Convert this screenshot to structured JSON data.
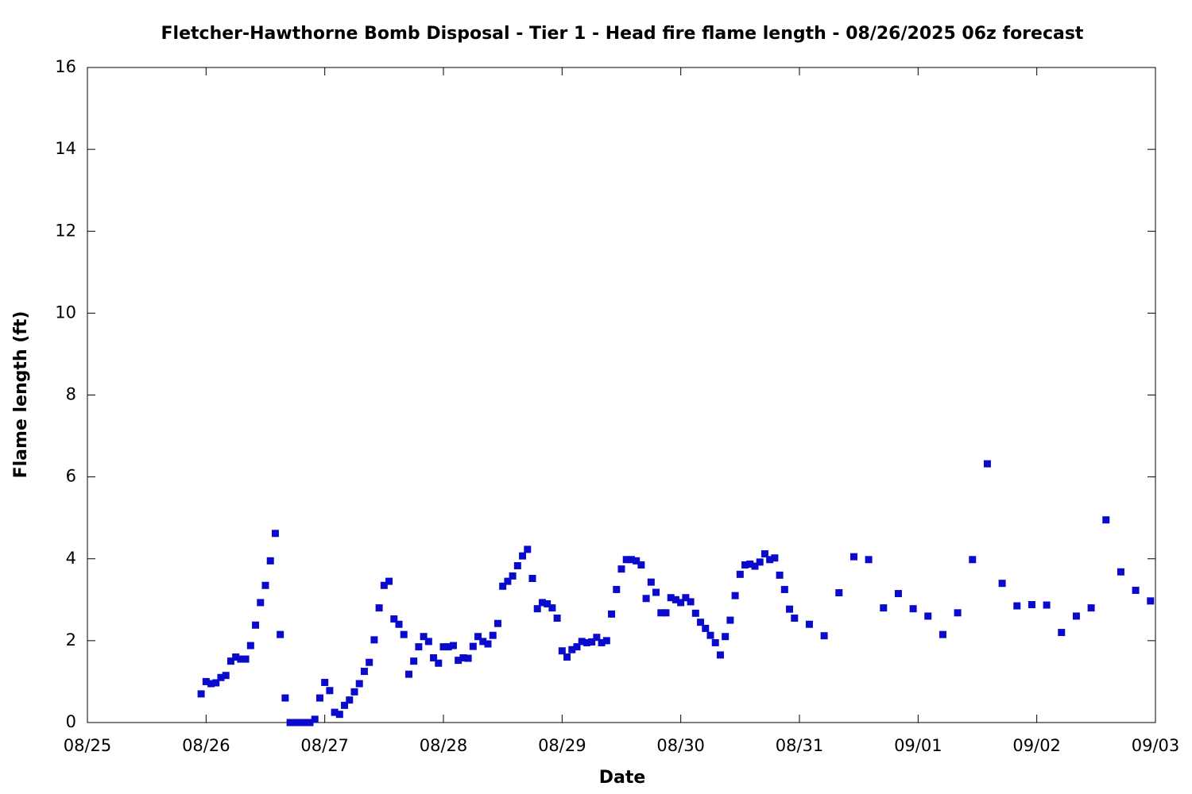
{
  "chart_data": {
    "type": "scatter",
    "title": "Fletcher-Hawthorne Bomb Disposal - Tier 1 - Head fire flame length - 08/26/2025 06z forecast",
    "xlabel": "Date",
    "ylabel": "Flame length (ft)",
    "color": "#0a0acc",
    "xlim": [
      0,
      216
    ],
    "xticks": [
      {
        "value": 0,
        "label": "08/25"
      },
      {
        "value": 24,
        "label": "08/26"
      },
      {
        "value": 48,
        "label": "08/27"
      },
      {
        "value": 72,
        "label": "08/28"
      },
      {
        "value": 96,
        "label": "08/29"
      },
      {
        "value": 120,
        "label": "08/30"
      },
      {
        "value": 144,
        "label": "08/31"
      },
      {
        "value": 168,
        "label": "09/01"
      },
      {
        "value": 192,
        "label": "09/02"
      },
      {
        "value": 216,
        "label": "09/03"
      }
    ],
    "ylim": [
      0,
      16
    ],
    "yticks": [
      0,
      2,
      4,
      6,
      8,
      10,
      12,
      14,
      16
    ],
    "grid": false,
    "x": [
      23,
      24,
      25,
      26,
      27,
      28,
      29,
      30,
      31,
      32,
      33,
      34,
      35,
      36,
      37,
      38,
      39,
      40,
      41,
      42,
      43,
      44,
      45,
      46,
      47,
      48,
      49,
      50,
      51,
      52,
      53,
      54,
      55,
      56,
      57,
      58,
      59,
      60,
      61,
      62,
      63,
      64,
      65,
      66,
      67,
      68,
      69,
      70,
      71,
      72,
      73,
      74,
      75,
      76,
      77,
      78,
      79,
      80,
      81,
      82,
      83,
      84,
      85,
      86,
      87,
      88,
      89,
      90,
      91,
      92,
      93,
      94,
      95,
      96,
      97,
      98,
      99,
      100,
      101,
      102,
      103,
      104,
      105,
      106,
      107,
      108,
      109,
      110,
      111,
      112,
      113,
      114,
      115,
      116,
      117,
      118,
      119,
      120,
      121,
      122,
      123,
      124,
      125,
      126,
      127,
      128,
      129,
      130,
      131,
      132,
      133,
      134,
      135,
      136,
      137,
      138,
      139,
      140,
      141,
      142,
      143,
      146,
      149,
      152,
      155,
      158,
      161,
      164,
      167,
      170,
      173,
      176,
      179,
      182,
      185,
      188,
      191,
      194,
      197,
      200,
      203,
      206,
      209,
      212,
      215
    ],
    "values": [
      0.7,
      1.0,
      0.95,
      0.97,
      1.1,
      1.15,
      1.5,
      1.6,
      1.55,
      1.55,
      1.88,
      2.38,
      2.93,
      3.35,
      3.95,
      4.62,
      2.15,
      0.6,
      0,
      0,
      0,
      0,
      0,
      0.08,
      0.6,
      0.98,
      0.78,
      0.25,
      0.2,
      0.42,
      0.55,
      0.75,
      0.95,
      1.25,
      1.47,
      2.02,
      2.8,
      3.35,
      3.45,
      2.53,
      2.4,
      2.15,
      1.18,
      1.5,
      1.85,
      2.1,
      1.98,
      1.58,
      1.45,
      1.85,
      1.85,
      1.88,
      1.52,
      1.58,
      1.57,
      1.86,
      2.1,
      1.98,
      1.92,
      2.13,
      2.42,
      3.33,
      3.45,
      3.58,
      3.83,
      4.07,
      4.23,
      3.52,
      2.78,
      2.93,
      2.9,
      2.8,
      2.55,
      1.75,
      1.6,
      1.78,
      1.85,
      1.98,
      1.95,
      1.97,
      2.08,
      1.95,
      2.0,
      2.65,
      3.25,
      3.75,
      3.98,
      3.98,
      3.95,
      3.85,
      3.03,
      3.43,
      3.18,
      2.68,
      2.68,
      3.05,
      3.0,
      2.93,
      3.05,
      2.95,
      2.67,
      2.45,
      2.3,
      2.13,
      1.95,
      1.65,
      2.1,
      2.5,
      3.1,
      3.62,
      3.85,
      3.87,
      3.82,
      3.92,
      4.12,
      3.98,
      4.02,
      3.6,
      3.25,
      2.77,
      2.55,
      2.4,
      2.12,
      3.17,
      4.05,
      3.98,
      2.8,
      3.15,
      2.78,
      2.6,
      2.15,
      2.68,
      3.98,
      6.32,
      3.4,
      2.85,
      2.88,
      2.87,
      2.2,
      2.6,
      2.8,
      4.95,
      3.68,
      3.23,
      2.97
    ]
  }
}
